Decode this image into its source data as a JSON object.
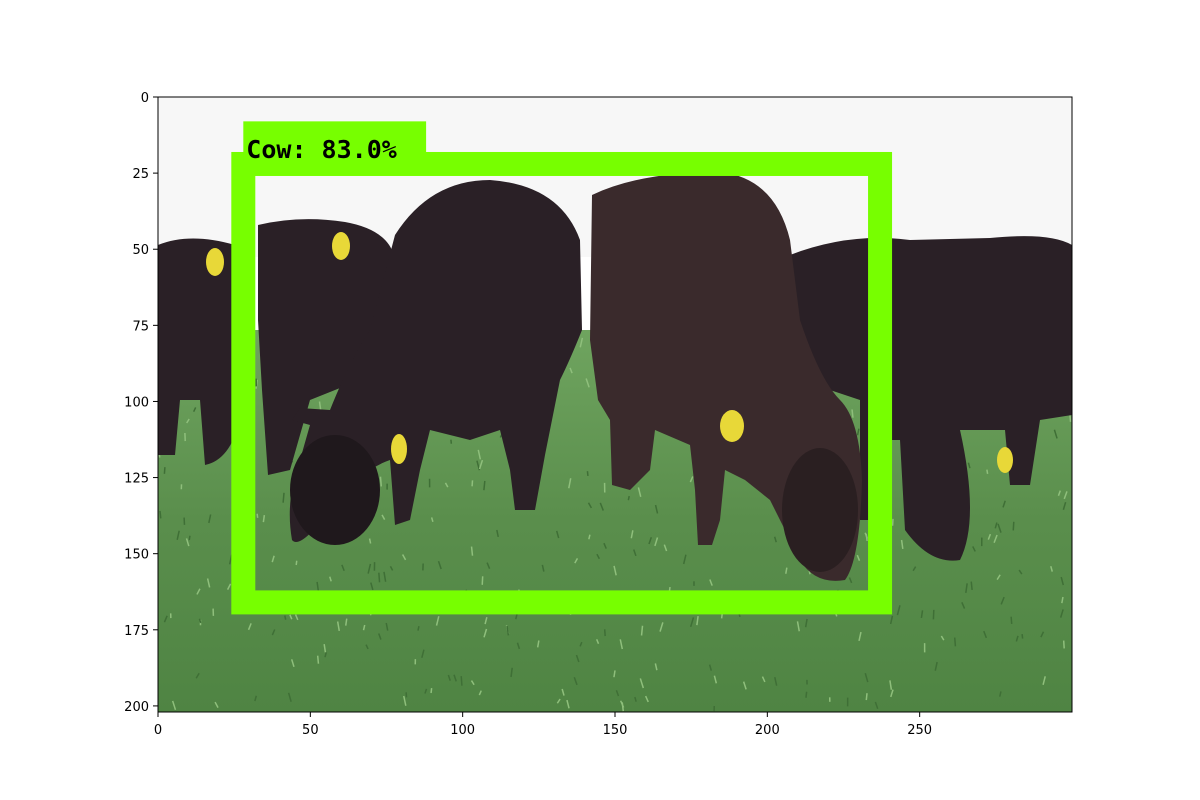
{
  "axes": {
    "x_ticks": [
      0,
      50,
      100,
      150,
      200,
      250
    ],
    "y_ticks": [
      0,
      25,
      50,
      75,
      100,
      125,
      150,
      175,
      200
    ],
    "xlim": [
      0,
      300
    ],
    "ylim": [
      202,
      0
    ]
  },
  "detection": {
    "label": "Cow:  83.0%",
    "box": {
      "x1": 28,
      "y1": 22,
      "x2": 237,
      "y2": 166
    },
    "label_box": {
      "x1": 28,
      "y1": 8,
      "x2": 88,
      "y2": 20
    },
    "color": "#77ff00",
    "text_color": "#000000"
  },
  "colors": {
    "sky": "#f7f7f7",
    "grass": "#5a8e4c",
    "grass_dark": "#3f6f36",
    "cow_body": "#2a2026",
    "cow_shadow": "#1a1418",
    "ear_tag": "#e8d838",
    "frame": "#000000"
  }
}
